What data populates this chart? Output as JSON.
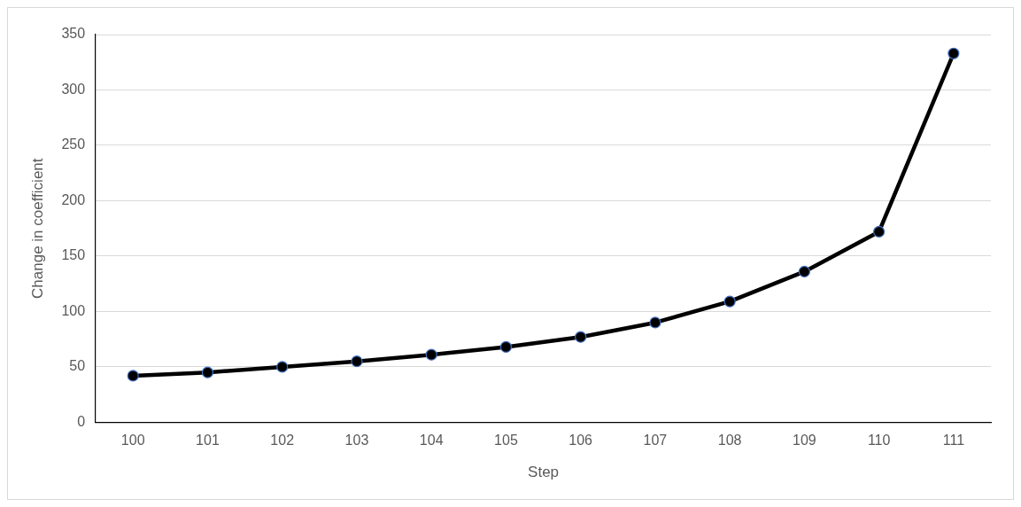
{
  "chart_data": {
    "type": "line",
    "xlabel": "Step",
    "ylabel": "Change in coefficient",
    "categories": [
      "100",
      "101",
      "102",
      "103",
      "104",
      "105",
      "106",
      "107",
      "108",
      "109",
      "110",
      "111"
    ],
    "series": [
      {
        "color": "#000000",
        "values": [
          42,
          45,
          50,
          55,
          61,
          68,
          77,
          90,
          109,
          136,
          172,
          333
        ]
      }
    ],
    "ylim": [
      0,
      350
    ],
    "yticks": [
      0,
      50,
      100,
      150,
      200,
      250,
      300,
      350
    ],
    "grid": "y",
    "legend": false,
    "marker": "circle",
    "line_style": "solid"
  }
}
